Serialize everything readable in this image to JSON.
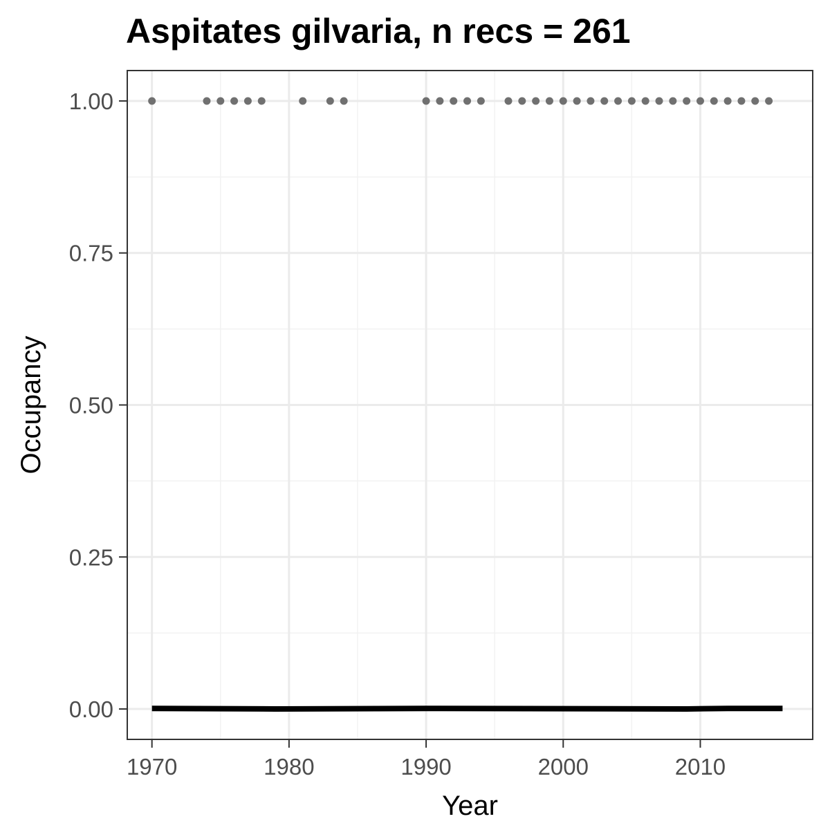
{
  "chart_data": {
    "type": "scatter",
    "title": "Aspitates gilvaria, n recs = 261",
    "xlabel": "Year",
    "ylabel": "Occupancy",
    "xlim": [
      1968.2,
      2018.2
    ],
    "ylim": [
      -0.05,
      1.05
    ],
    "x_ticks": [
      1970,
      1980,
      1990,
      2000,
      2010
    ],
    "y_ticks": [
      0.0,
      0.25,
      0.5,
      0.75,
      1.0
    ],
    "x_tick_labels": [
      "1970",
      "1980",
      "1990",
      "2000",
      "2010"
    ],
    "y_tick_labels": [
      "0.00",
      "0.25",
      "0.50",
      "0.75",
      "1.00"
    ],
    "grid": true,
    "series": [
      {
        "type": "scatter",
        "color": "#707070",
        "x": [
          1970,
          1974,
          1975,
          1976,
          1977,
          1978,
          1981,
          1983,
          1984,
          1990,
          1991,
          1992,
          1993,
          1994,
          1996,
          1997,
          1998,
          1999,
          2000,
          2001,
          2002,
          2003,
          2004,
          2005,
          2006,
          2007,
          2008,
          2009,
          2010,
          2011,
          2012,
          2013,
          2014,
          2015
        ],
        "y": [
          1,
          1,
          1,
          1,
          1,
          1,
          1,
          1,
          1,
          1,
          1,
          1,
          1,
          1,
          1,
          1,
          1,
          1,
          1,
          1,
          1,
          1,
          1,
          1,
          1,
          1,
          1,
          1,
          1,
          1,
          1,
          1,
          1,
          1
        ]
      },
      {
        "type": "line",
        "color": "#000000",
        "x": [
          1970,
          1979,
          1990,
          2009,
          2012,
          2016
        ],
        "y": [
          0.001,
          0.0,
          0.001,
          0.0,
          0.001,
          0.001
        ]
      }
    ]
  }
}
